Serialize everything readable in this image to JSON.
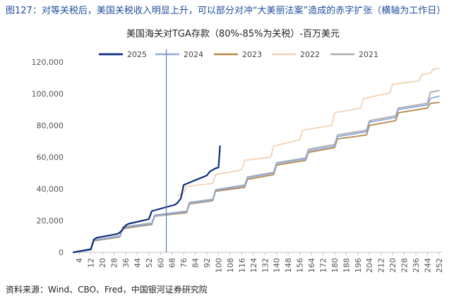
{
  "figure_caption": "图127：对等关税后，美国关税收入明显上升，可以部分对冲“大美丽法案”造成的赤字扩张（横轴为工作日）",
  "source_text": "资料来源：Wind、CBO、Fred，中国银河证券研究院",
  "chart_data": {
    "type": "line",
    "title": "美国海关对TGA存款（80%-85%为关税）-百万美元",
    "xlabel": "",
    "ylabel": "",
    "xlim": [
      0,
      254
    ],
    "ylim": [
      0,
      120000
    ],
    "yticks": [
      0,
      20000,
      40000,
      60000,
      80000,
      100000,
      120000
    ],
    "ytick_labels": [
      "0",
      "20,000",
      "40,000",
      "60,000",
      "80,000",
      "100,000",
      "120,000"
    ],
    "xticks": [
      4,
      12,
      20,
      28,
      36,
      44,
      52,
      60,
      68,
      76,
      84,
      92,
      100,
      108,
      116,
      124,
      132,
      140,
      148,
      156,
      164,
      172,
      180,
      188,
      196,
      204,
      212,
      220,
      228,
      236,
      244,
      252
    ],
    "vline_x": 64,
    "legend_position": "top",
    "series": [
      {
        "name": "2025",
        "color": "#0d2e7d",
        "width": 2.2,
        "x": [
          0,
          12,
          14,
          16,
          30,
          32,
          34,
          36,
          38,
          50,
          52,
          54,
          70,
          72,
          74,
          76,
          80,
          84,
          88,
          92,
          94,
          96,
          98,
          100,
          101
        ],
        "y": [
          0,
          2000,
          8000,
          9200,
          11500,
          12500,
          14500,
          17000,
          18000,
          20500,
          21000,
          26000,
          30000,
          31500,
          34000,
          42500,
          44000,
          45500,
          47000,
          48500,
          51000,
          52000,
          53000,
          53500,
          67000
        ]
      },
      {
        "name": "2024",
        "color": "#8faadc",
        "width": 1.8,
        "x": [
          0,
          12,
          14,
          32,
          34,
          54,
          56,
          78,
          80,
          96,
          98,
          118,
          120,
          138,
          140,
          160,
          162,
          180,
          182,
          202,
          204,
          222,
          224,
          244,
          246,
          252
        ],
        "y": [
          0,
          1500,
          7500,
          10000,
          15500,
          18000,
          23000,
          25500,
          31000,
          33000,
          39000,
          42000,
          47000,
          50000,
          56000,
          59000,
          64000,
          67000,
          73000,
          76000,
          82000,
          85000,
          90000,
          93000,
          97000,
          98500
        ]
      },
      {
        "name": "2023",
        "color": "#b48648",
        "width": 1.8,
        "x": [
          0,
          12,
          14,
          32,
          34,
          54,
          56,
          78,
          80,
          96,
          98,
          118,
          120,
          138,
          140,
          160,
          162,
          180,
          182,
          202,
          204,
          222,
          224,
          244,
          246,
          252
        ],
        "y": [
          0,
          1500,
          7200,
          9700,
          15000,
          17500,
          22700,
          25000,
          30500,
          32500,
          38500,
          41000,
          46000,
          49000,
          55000,
          58000,
          63000,
          66000,
          71500,
          74000,
          80000,
          83000,
          88000,
          91000,
          94000,
          94500
        ]
      },
      {
        "name": "2022",
        "color": "#f2d2b4",
        "width": 1.8,
        "x": [
          72,
          76,
          78,
          96,
          98,
          116,
          118,
          136,
          138,
          156,
          158,
          178,
          180,
          198,
          200,
          218,
          220,
          238,
          240,
          246,
          248,
          252
        ],
        "y": [
          36000,
          37500,
          41500,
          43500,
          49000,
          52000,
          58000,
          60000,
          67000,
          71000,
          77000,
          80000,
          88000,
          91000,
          97000,
          100500,
          106000,
          108000,
          112000,
          113000,
          115500,
          116000
        ]
      },
      {
        "name": "2021",
        "color": "#a9a9a9",
        "width": 1.8,
        "x": [
          0,
          12,
          14,
          32,
          34,
          54,
          56,
          78,
          80,
          96,
          98,
          118,
          120,
          138,
          140,
          160,
          162,
          180,
          182,
          202,
          204,
          222,
          224,
          244,
          246,
          252
        ],
        "y": [
          0,
          1500,
          7800,
          10300,
          16000,
          18500,
          23500,
          26000,
          31500,
          33500,
          39500,
          42500,
          47500,
          50500,
          56500,
          59500,
          65000,
          68000,
          74000,
          77000,
          83000,
          86000,
          91000,
          94000,
          101000,
          102000
        ]
      }
    ]
  }
}
